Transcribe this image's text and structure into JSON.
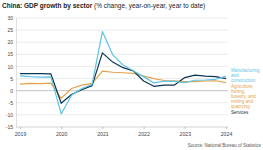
{
  "chart_data": {
    "type": "line",
    "title": "China: GDP growth by sector",
    "subtitle": "(% change, year-on-year, year to date)",
    "source": "Source: National Bureau of Statistics",
    "categories": [
      "2019",
      null,
      null,
      null,
      "2020",
      null,
      null,
      null,
      "2021",
      null,
      null,
      null,
      "2022",
      null,
      null,
      null,
      "2023",
      null,
      null,
      null,
      "2024"
    ],
    "series": [
      {
        "name": "Manufacturing and construction",
        "color": "#5ec3e6",
        "values": [
          6.1,
          5.8,
          5.6,
          5.7,
          -9.6,
          -1.9,
          0.9,
          2.6,
          24.4,
          14.8,
          10.6,
          8.2,
          5.8,
          3.2,
          3.9,
          3.8,
          3.3,
          4.3,
          4.4,
          4.7,
          6.0
        ]
      },
      {
        "name": "Services",
        "color": "#0b3552",
        "values": [
          7.0,
          7.0,
          7.0,
          6.9,
          -5.2,
          -1.6,
          0.4,
          2.1,
          15.6,
          11.8,
          9.5,
          8.2,
          4.0,
          1.8,
          2.3,
          2.3,
          5.4,
          6.4,
          6.0,
          5.8,
          5.0
        ]
      },
      {
        "name": "Agriculture, fishing, forestry, and mining and quarrying",
        "color": "#e6a24c",
        "values": [
          2.7,
          3.0,
          2.9,
          3.1,
          -3.2,
          0.9,
          2.3,
          3.0,
          8.1,
          7.6,
          7.4,
          7.1,
          6.0,
          5.0,
          4.2,
          4.1,
          3.7,
          3.7,
          4.0,
          4.1,
          3.3
        ]
      }
    ],
    "ylim": [
      -15,
      30
    ],
    "yticks": [
      -15,
      -10,
      -5,
      0,
      5,
      10,
      15,
      20,
      25,
      30
    ],
    "grid": true,
    "legend": "right"
  }
}
